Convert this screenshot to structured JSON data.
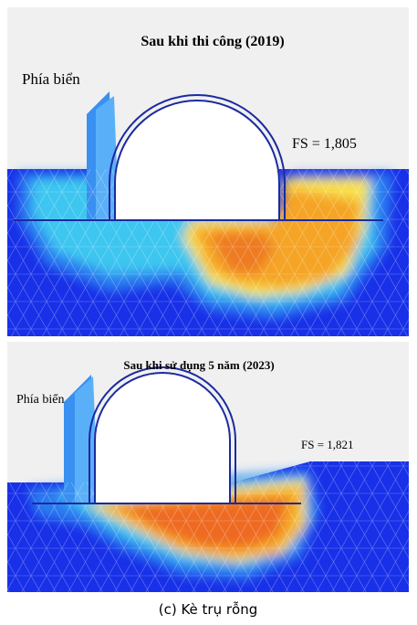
{
  "panels": [
    {
      "title": "Sau khi thi công (2019)",
      "side_label": "Phía biển",
      "fs_label": "FS = 1,805"
    },
    {
      "title": "Sau khi sử dụng 5 năm (2023)",
      "side_label": "Phía biển",
      "fs_label": "FS = 1,821"
    }
  ],
  "caption": "(c) Kè trụ rỗng"
}
